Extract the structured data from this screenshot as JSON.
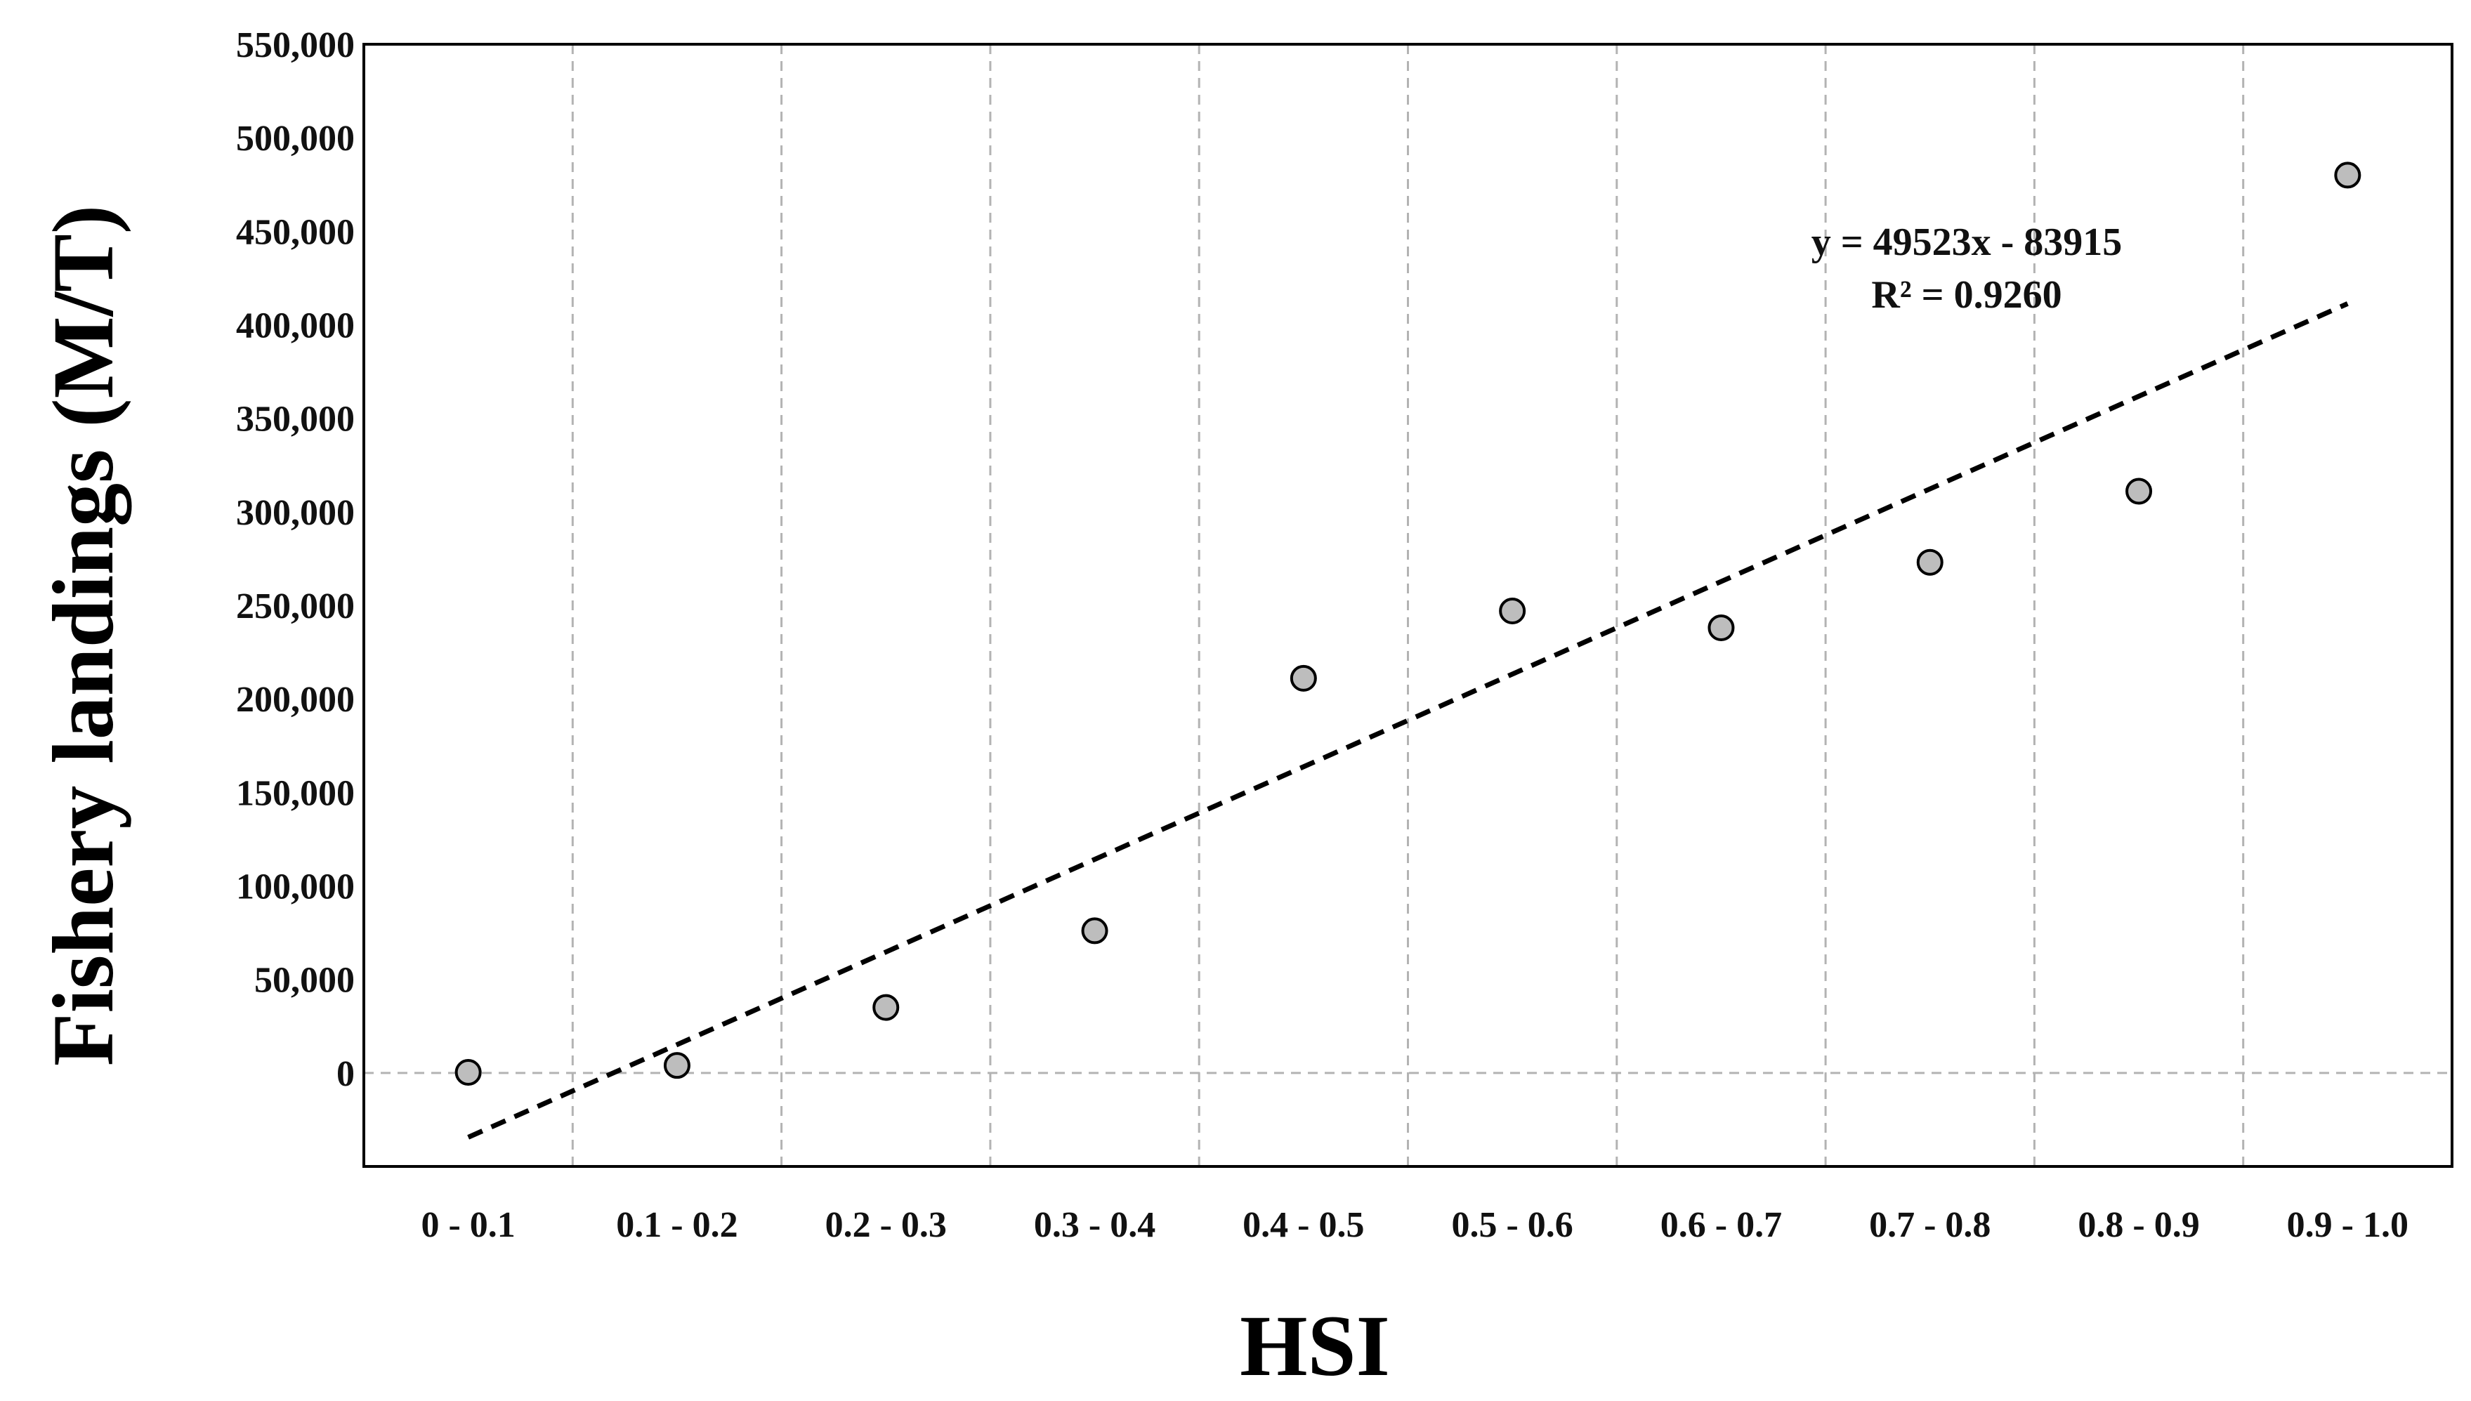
{
  "chart_data": {
    "type": "scatter",
    "title": "",
    "xlabel": "HSI",
    "ylabel": "Fishery landings (M/T)",
    "categories": [
      "0 - 0.1",
      "0.1 - 0.2",
      "0.2 - 0.3",
      "0.3 - 0.4",
      "0.4 - 0.5",
      "0.5 - 0.6",
      "0.6 - 0.7",
      "0.7 - 0.8",
      "0.8 - 0.9",
      "0.9 - 1.0"
    ],
    "values": [
      300,
      4000,
      35000,
      76000,
      211000,
      247000,
      238000,
      273000,
      311000,
      480000
    ],
    "ylim": [
      -50000,
      550000
    ],
    "yticks": [
      0,
      50000,
      100000,
      150000,
      200000,
      250000,
      300000,
      350000,
      400000,
      450000,
      500000,
      550000
    ],
    "ytick_labels": [
      "0",
      "50,000",
      "100,000",
      "150,000",
      "200,000",
      "250,000",
      "300,000",
      "350,000",
      "400,000",
      "450,000",
      "500,000",
      "550,000"
    ],
    "trendline": {
      "slope": 49523,
      "intercept": -83915,
      "equation": "y = 49523x - 83915",
      "r2": "R² = 0.9260"
    },
    "grid": "dashed vertical separators between categories, dashed horizontal line at zero",
    "marker_color": "#bdbdbd",
    "trendline_color": "#000000"
  }
}
